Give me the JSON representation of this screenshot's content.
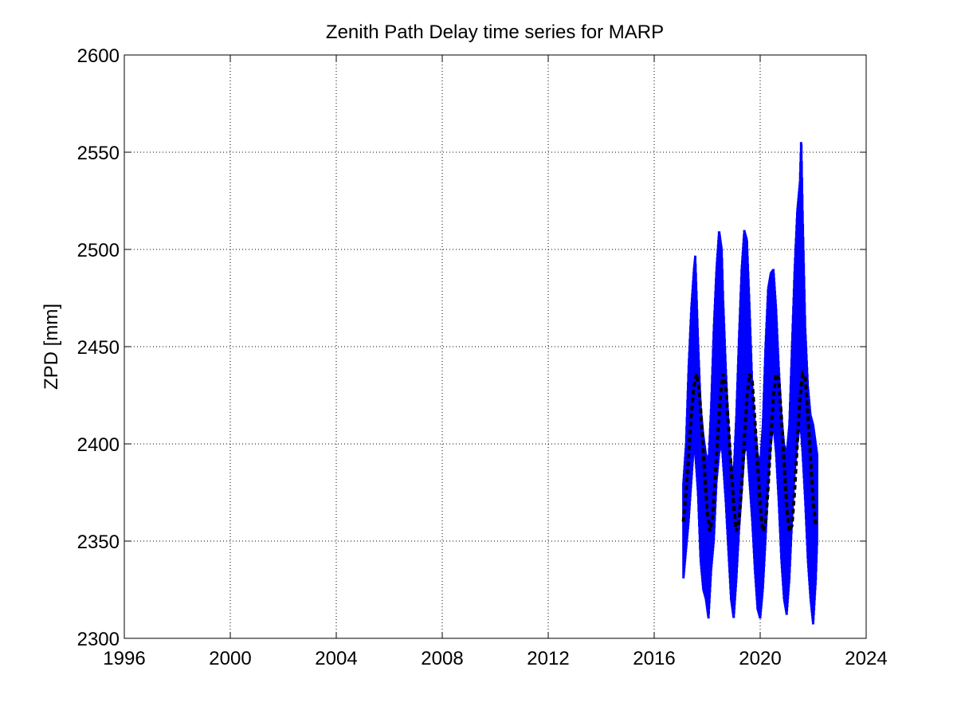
{
  "chart_data": {
    "type": "line",
    "title": "Zenith Path Delay time series for MARP",
    "xlabel": "",
    "ylabel": "ZPD [mm]",
    "xlim": [
      1996,
      2024
    ],
    "ylim": [
      2300,
      2600
    ],
    "xticks": [
      1996,
      2000,
      2004,
      2008,
      2012,
      2016,
      2020,
      2024
    ],
    "yticks": [
      2300,
      2350,
      2400,
      2450,
      2500,
      2550,
      2600
    ],
    "xtick_labels": [
      "1996",
      "2000",
      "2004",
      "2008",
      "2012",
      "2016",
      "2020",
      "2024"
    ],
    "ytick_labels": [
      "2300",
      "2350",
      "2400",
      "2450",
      "2500",
      "2550",
      "2600"
    ],
    "grid": true,
    "legend": null,
    "colors": {
      "series_observed": "#0000ff",
      "series_model": "#000000",
      "grid": "#000000",
      "axes": "#000000"
    },
    "series": [
      {
        "style": "solid",
        "x": [
          2017.1,
          2017.2,
          2017.3,
          2017.4,
          2017.5,
          2017.55,
          2017.65,
          2017.75,
          2017.85,
          2017.95,
          2018.05,
          2018.15,
          2018.25,
          2018.35,
          2018.45,
          2018.55,
          2018.6,
          2018.7,
          2018.8,
          2018.9,
          2019.0,
          2019.1,
          2019.2,
          2019.3,
          2019.4,
          2019.5,
          2019.6,
          2019.7,
          2019.8,
          2019.9,
          2020.0,
          2020.1,
          2020.2,
          2020.3,
          2020.4,
          2020.5,
          2020.6,
          2020.7,
          2020.8,
          2020.9,
          2021.0,
          2021.1,
          2021.2,
          2021.3,
          2021.4,
          2021.5,
          2021.55,
          2021.6,
          2021.7,
          2021.8,
          2021.9,
          2022.0,
          2022.1,
          2022.15
        ],
        "y_low": [
          2330,
          2345,
          2360,
          2380,
          2400,
          2395,
          2375,
          2340,
          2325,
          2320,
          2310,
          2335,
          2350,
          2380,
          2395,
          2400,
          2390,
          2370,
          2345,
          2320,
          2310,
          2330,
          2355,
          2375,
          2395,
          2400,
          2380,
          2360,
          2335,
          2315,
          2310,
          2325,
          2350,
          2380,
          2400,
          2410,
          2395,
          2370,
          2340,
          2320,
          2312,
          2330,
          2360,
          2385,
          2400,
          2410,
          2405,
          2395,
          2370,
          2340,
          2320,
          2307,
          2330,
          2350
        ],
        "y_high": [
          2380,
          2400,
          2440,
          2470,
          2490,
          2497,
          2455,
          2420,
          2405,
          2395,
          2390,
          2420,
          2460,
          2490,
          2510,
          2500,
          2475,
          2440,
          2410,
          2390,
          2385,
          2415,
          2455,
          2490,
          2510,
          2505,
          2470,
          2430,
          2410,
          2395,
          2390,
          2410,
          2450,
          2480,
          2488,
          2490,
          2470,
          2440,
          2415,
          2400,
          2395,
          2410,
          2450,
          2490,
          2520,
          2535,
          2558,
          2520,
          2460,
          2430,
          2415,
          2410,
          2400,
          2395
        ]
      },
      {
        "style": "dashed",
        "x": [
          2017.1,
          2017.2,
          2017.3,
          2017.4,
          2017.5,
          2017.6,
          2017.7,
          2017.8,
          2017.9,
          2018.0,
          2018.1,
          2018.2,
          2018.3,
          2018.4,
          2018.5,
          2018.6,
          2018.7,
          2018.8,
          2018.9,
          2019.0,
          2019.1,
          2019.2,
          2019.3,
          2019.4,
          2019.5,
          2019.6,
          2019.7,
          2019.8,
          2019.9,
          2020.0,
          2020.1,
          2020.2,
          2020.3,
          2020.4,
          2020.5,
          2020.6,
          2020.7,
          2020.8,
          2020.9,
          2021.0,
          2021.1,
          2021.2,
          2021.3,
          2021.4,
          2021.5,
          2021.6,
          2021.7,
          2021.8,
          2021.9,
          2022.0,
          2022.1,
          2022.15
        ],
        "y": [
          2360,
          2375,
          2395,
          2415,
          2430,
          2436,
          2428,
          2408,
          2385,
          2365,
          2355,
          2362,
          2382,
          2405,
          2425,
          2436,
          2430,
          2410,
          2388,
          2368,
          2355,
          2360,
          2378,
          2402,
          2424,
          2436,
          2432,
          2412,
          2390,
          2368,
          2355,
          2358,
          2378,
          2402,
          2425,
          2436,
          2433,
          2414,
          2390,
          2368,
          2355,
          2358,
          2376,
          2400,
          2424,
          2436,
          2434,
          2415,
          2392,
          2370,
          2358,
          2358
        ]
      }
    ]
  }
}
